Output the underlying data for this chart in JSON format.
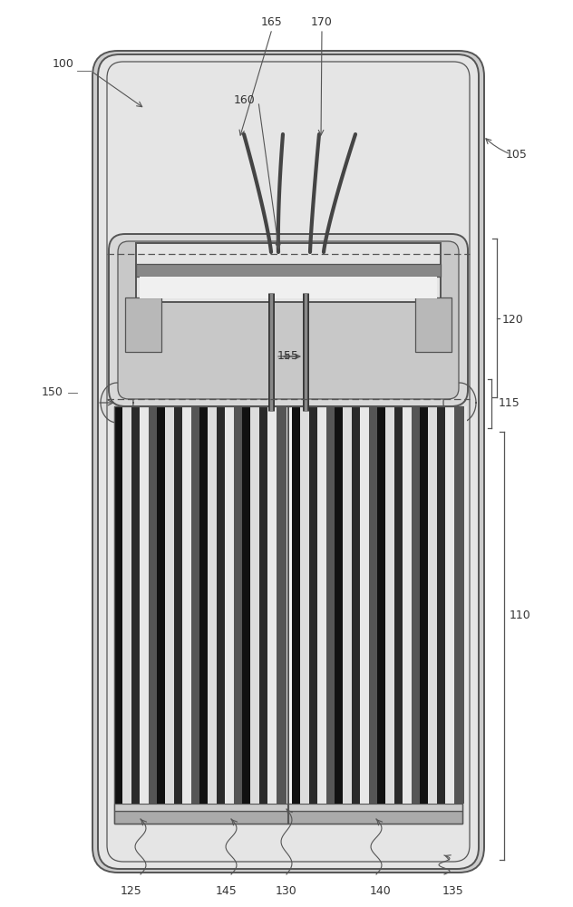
{
  "bg_color": "#ffffff",
  "lc": "#555555",
  "lc_dark": "#333333",
  "fill_case_outer": "#d8d8d8",
  "fill_case_inner": "#eeeeee",
  "fill_cap_body": "#d0d0d0",
  "fill_terminal_light": "#e8e8e8",
  "fill_terminal_dark": "#999999",
  "fill_stripe_bg": "#f0f0f0",
  "fill_bottom_strip": "#aaaaaa",
  "wire_color": "#555555",
  "label_color": "#333333",
  "fs": 9,
  "lw_main": 1.4,
  "lw_thin": 0.9,
  "lw_wire": 2.5
}
